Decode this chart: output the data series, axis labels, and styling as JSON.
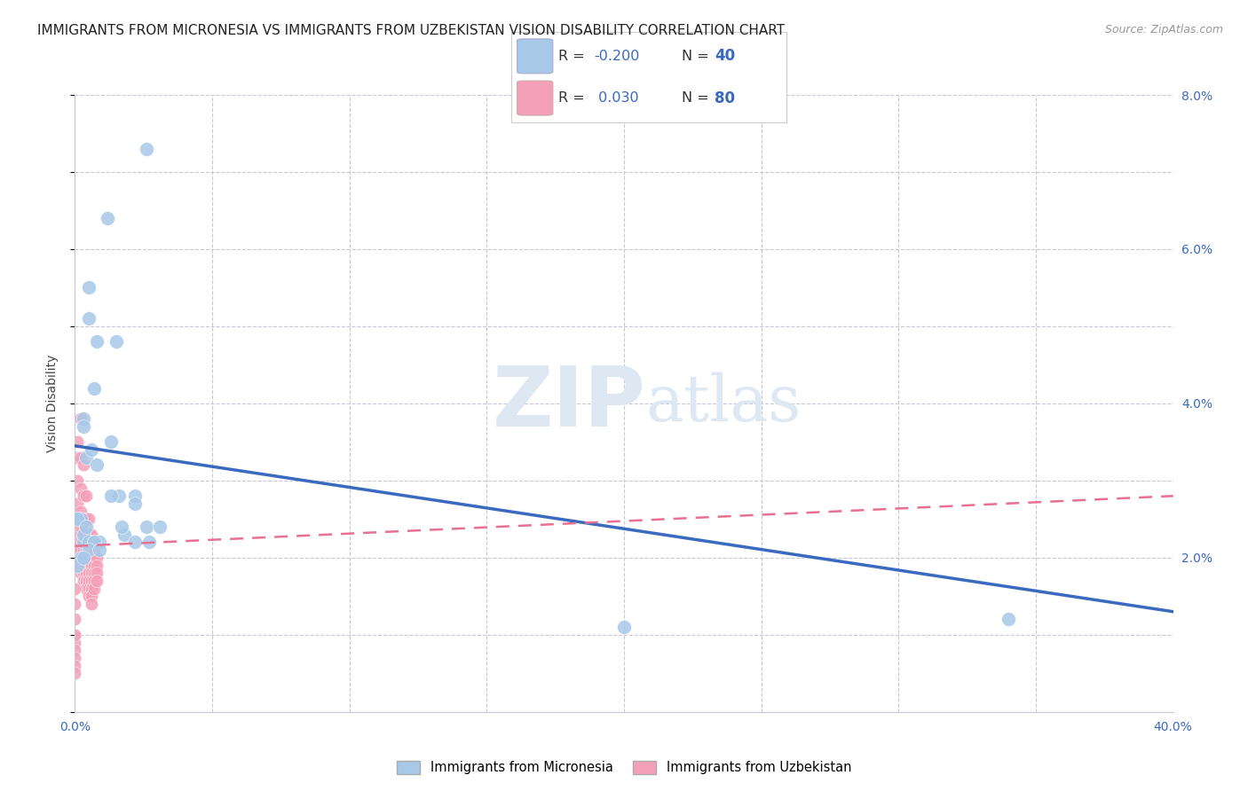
{
  "title": "IMMIGRANTS FROM MICRONESIA VS IMMIGRANTS FROM UZBEKISTAN VISION DISABILITY CORRELATION CHART",
  "source": "Source: ZipAtlas.com",
  "ylabel": "Vision Disability",
  "xlim": [
    0,
    0.4
  ],
  "ylim": [
    0,
    0.08
  ],
  "xticks": [
    0.0,
    0.05,
    0.1,
    0.15,
    0.2,
    0.25,
    0.3,
    0.35,
    0.4
  ],
  "yticks_right": [
    0.0,
    0.02,
    0.04,
    0.06,
    0.08
  ],
  "yticklabels_right": [
    "",
    "2.0%",
    "4.0%",
    "6.0%",
    "8.0%"
  ],
  "micronesia_R": -0.2,
  "micronesia_N": 40,
  "uzbekistan_R": 0.03,
  "uzbekistan_N": 80,
  "blue_dot_color": "#a8c8e8",
  "pink_dot_color": "#f4a0b8",
  "blue_line_color": "#3a6abf",
  "pink_line_color": "#e87090",
  "grid_color": "#c8c8d8",
  "background_color": "#ffffff",
  "watermark_zip": "ZIP",
  "watermark_atlas": "atlas",
  "title_fontsize": 11,
  "axis_label_fontsize": 10,
  "tick_fontsize": 10,
  "legend_fontsize": 10.5,
  "blue_line_x0": 0.0,
  "blue_line_x1": 0.4,
  "blue_line_y0": 0.0345,
  "blue_line_y1": 0.013,
  "pink_line_x0": 0.0,
  "pink_line_x1": 0.4,
  "pink_line_y0": 0.0215,
  "pink_line_y1": 0.028,
  "blue_scatter_x": [
    0.005,
    0.012,
    0.026,
    0.005,
    0.008,
    0.015,
    0.007,
    0.003,
    0.003,
    0.004,
    0.006,
    0.008,
    0.013,
    0.016,
    0.022,
    0.026,
    0.031,
    0.022,
    0.006,
    0.003,
    0.002,
    0.001,
    0.003,
    0.005,
    0.007,
    0.009,
    0.018,
    0.022,
    0.027,
    0.013,
    0.004,
    0.007,
    0.017,
    0.2,
    0.34,
    0.005,
    0.002,
    0.001,
    0.009,
    0.003
  ],
  "blue_scatter_y": [
    0.055,
    0.064,
    0.073,
    0.051,
    0.048,
    0.048,
    0.042,
    0.038,
    0.037,
    0.033,
    0.034,
    0.032,
    0.035,
    0.028,
    0.028,
    0.024,
    0.024,
    0.027,
    0.022,
    0.022,
    0.025,
    0.025,
    0.023,
    0.022,
    0.022,
    0.022,
    0.023,
    0.022,
    0.022,
    0.028,
    0.024,
    0.022,
    0.024,
    0.011,
    0.012,
    0.021,
    0.02,
    0.019,
    0.021,
    0.02
  ],
  "pink_scatter_x": [
    0.001,
    0.001,
    0.001,
    0.001,
    0.001,
    0.001,
    0.001,
    0.001,
    0.001,
    0.001,
    0.002,
    0.002,
    0.002,
    0.002,
    0.002,
    0.002,
    0.002,
    0.002,
    0.002,
    0.002,
    0.003,
    0.003,
    0.003,
    0.003,
    0.003,
    0.003,
    0.003,
    0.003,
    0.003,
    0.003,
    0.004,
    0.004,
    0.004,
    0.004,
    0.004,
    0.004,
    0.004,
    0.004,
    0.004,
    0.004,
    0.005,
    0.005,
    0.005,
    0.005,
    0.005,
    0.005,
    0.005,
    0.005,
    0.005,
    0.005,
    0.006,
    0.006,
    0.006,
    0.006,
    0.006,
    0.006,
    0.006,
    0.006,
    0.006,
    0.006,
    0.0,
    0.0,
    0.0,
    0.0,
    0.0,
    0.0,
    0.0,
    0.0,
    0.0,
    0.0,
    0.007,
    0.007,
    0.007,
    0.007,
    0.007,
    0.007,
    0.008,
    0.008,
    0.008,
    0.008
  ],
  "pink_scatter_y": [
    0.035,
    0.033,
    0.03,
    0.027,
    0.025,
    0.023,
    0.022,
    0.021,
    0.02,
    0.019,
    0.038,
    0.033,
    0.029,
    0.026,
    0.024,
    0.022,
    0.021,
    0.02,
    0.019,
    0.018,
    0.032,
    0.028,
    0.025,
    0.023,
    0.022,
    0.021,
    0.02,
    0.019,
    0.018,
    0.017,
    0.028,
    0.025,
    0.023,
    0.022,
    0.021,
    0.02,
    0.019,
    0.018,
    0.017,
    0.016,
    0.025,
    0.023,
    0.022,
    0.021,
    0.02,
    0.019,
    0.018,
    0.017,
    0.016,
    0.015,
    0.023,
    0.022,
    0.021,
    0.02,
    0.019,
    0.018,
    0.017,
    0.016,
    0.015,
    0.014,
    0.01,
    0.009,
    0.008,
    0.007,
    0.006,
    0.005,
    0.016,
    0.014,
    0.012,
    0.01,
    0.021,
    0.02,
    0.019,
    0.018,
    0.017,
    0.016,
    0.02,
    0.019,
    0.018,
    0.017
  ]
}
